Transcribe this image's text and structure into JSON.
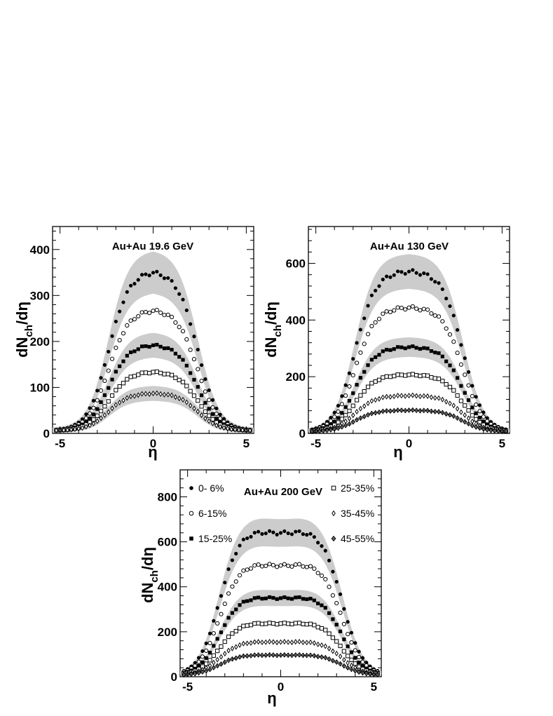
{
  "chart_data": [
    {
      "type": "scatter",
      "title": "Au+Au  19.6 GeV",
      "xlabel": "η",
      "ylabel": "dNch/dη",
      "ylabel_main": "dN",
      "ylabel_sub": "ch",
      "ylabel_tail": "/dη",
      "xlim": [
        -5.4,
        5.4
      ],
      "ylim": [
        0,
        450
      ],
      "x_ticks": [
        -5,
        0,
        5
      ],
      "x_tick_labels": [
        "-5",
        "0",
        "5"
      ],
      "y_ticks": [
        0,
        100,
        200,
        300,
        400
      ],
      "y_tick_labels": [
        "0",
        "100",
        "200",
        "300",
        "400"
      ],
      "flat_width": 1.0,
      "edge_fall": 2.4,
      "dip": 0.0,
      "series": [
        {
          "name": "0- 6%",
          "plateau": 348,
          "uncert": 0.12,
          "marker": "filled-circle",
          "band": true
        },
        {
          "name": "6-15%",
          "plateau": 264,
          "uncert": 0,
          "marker": "open-circle",
          "band": false
        },
        {
          "name": "15-25%",
          "plateau": 188,
          "uncert": 0.12,
          "marker": "filled-square",
          "band": true
        },
        {
          "name": "25-35%",
          "plateau": 129,
          "uncert": 0,
          "marker": "open-square",
          "band": false
        },
        {
          "name": "35-45%",
          "plateau": 82,
          "uncert": 0.14,
          "marker": "open-diamond",
          "band": true
        }
      ]
    },
    {
      "type": "scatter",
      "title": "Au+Au 130 GeV",
      "xlabel": "η",
      "ylabel": "dNch/dη",
      "ylabel_main": "dN",
      "ylabel_sub": "ch",
      "ylabel_tail": "/dη",
      "xlim": [
        -5.4,
        5.4
      ],
      "ylim": [
        0,
        730
      ],
      "x_ticks": [
        -5,
        0,
        5
      ],
      "x_tick_labels": [
        "-5",
        "0",
        "5"
      ],
      "y_ticks": [
        0,
        200,
        400,
        600
      ],
      "y_tick_labels": [
        "0",
        "200",
        "400",
        "600"
      ],
      "flat_width": 1.6,
      "edge_fall": 2.9,
      "dip": 0.0,
      "series": [
        {
          "name": "0- 6%",
          "plateau": 568,
          "uncert": 0.1,
          "marker": "filled-circle",
          "band": true
        },
        {
          "name": "6-15%",
          "plateau": 440,
          "uncert": 0,
          "marker": "open-circle",
          "band": false
        },
        {
          "name": "15-25%",
          "plateau": 300,
          "uncert": 0.1,
          "marker": "filled-square",
          "band": true
        },
        {
          "name": "25-35%",
          "plateau": 202,
          "uncert": 0,
          "marker": "open-square",
          "band": false
        },
        {
          "name": "35-45%",
          "plateau": 128,
          "uncert": 0,
          "marker": "open-diamond",
          "band": false
        },
        {
          "name": "45-55%",
          "plateau": 76,
          "uncert": 0,
          "marker": "crossed-diamond",
          "band": false
        }
      ]
    },
    {
      "type": "scatter",
      "title": "Au+Au 200 GeV",
      "xlabel": "η",
      "ylabel": "dNch/dη",
      "ylabel_main": "dN",
      "ylabel_sub": "ch",
      "ylabel_tail": "/dη",
      "xlim": [
        -5.4,
        5.4
      ],
      "ylim": [
        0,
        920
      ],
      "x_ticks": [
        -5,
        0,
        5
      ],
      "x_tick_labels": [
        "-5",
        "0",
        "5"
      ],
      "y_ticks": [
        0,
        200,
        400,
        600,
        800
      ],
      "y_tick_labels": [
        "0",
        "200",
        "400",
        "600",
        "800"
      ],
      "flat_width": 1.9,
      "edge_fall": 3.3,
      "dip": 0.03,
      "series": [
        {
          "name": "0- 6%",
          "plateau": 655,
          "uncert": 0.09,
          "marker": "filled-circle",
          "band": true
        },
        {
          "name": "6-15%",
          "plateau": 505,
          "uncert": 0,
          "marker": "open-circle",
          "band": false
        },
        {
          "name": "15-25%",
          "plateau": 355,
          "uncert": 0.09,
          "marker": "filled-square",
          "band": true
        },
        {
          "name": "25-35%",
          "plateau": 238,
          "uncert": 0,
          "marker": "open-square",
          "band": false
        },
        {
          "name": "35-45%",
          "plateau": 153,
          "uncert": 0,
          "marker": "open-diamond",
          "band": false
        },
        {
          "name": "45-55%",
          "plateau": 93,
          "uncert": 0,
          "marker": "crossed-diamond",
          "band": false
        }
      ],
      "legend": [
        "0- 6%",
        "6-15%",
        "15-25%",
        "25-35%",
        "35-45%",
        "45-55%"
      ]
    }
  ]
}
